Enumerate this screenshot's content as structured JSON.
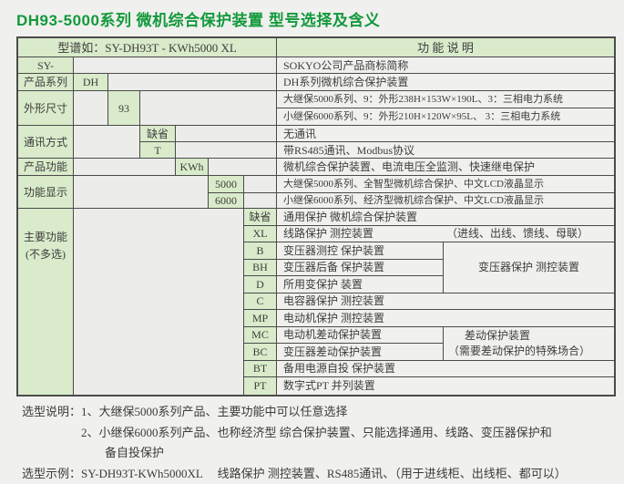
{
  "title": "DH93-5000系列 微机综合保护装置 型号选择及含义",
  "colors": {
    "title_green": "#13993c",
    "cell_green": "#d9ebca",
    "border": "#4b4b4b",
    "page_bg": "#f0f0ee"
  },
  "header": {
    "spec": "型谱如：SY-DH93T - KWh5000 XL",
    "desc": "功 能 说 明"
  },
  "rows": {
    "sy": {
      "label": "SY-",
      "desc": "SOKYO公司产品商标简称"
    },
    "series": {
      "label": "产品系列",
      "code": "DH",
      "desc": "DH系列微机综合保护装置"
    },
    "size": {
      "label": "外形尺寸",
      "code": "93",
      "desc1": "大继保5000系列、9：外形238H×153W×190L、3：三相电力系统",
      "desc2": "小继保6000系列、9：外形210H×120W×95L、 3：三相电力系统"
    },
    "comm": {
      "label": "通讯方式",
      "code1": "缺省",
      "desc1": "无通讯",
      "code2": "T",
      "desc2": "带RS485通讯、Modbus协议"
    },
    "func": {
      "label": "产品功能",
      "code": "KWh",
      "desc": "微机综合保护装置、电流电压全监测、快速继电保护"
    },
    "display": {
      "label": "功能显示",
      "code1": "5000",
      "desc1": "大继保5000系列、全智型微机综合保护、中文LCD液晶显示",
      "code2": "6000",
      "desc2": "小继保6000系列、经济型微机综合保护、中文LCD液晶显示"
    },
    "main": {
      "label1": "主要功能",
      "label2": "(不多选)",
      "items": [
        {
          "code": "缺省",
          "desc": "通用保护 微机综合保护装置"
        },
        {
          "code": "XL",
          "desc": "线路保护 测控装置",
          "note": "（进线、出线、馈线、母联）"
        },
        {
          "code": "B",
          "desc": "变压器测控 保护装置"
        },
        {
          "code": "BH",
          "desc": "变压器后备 保护装置"
        },
        {
          "code": "D",
          "desc": "所用变保护 装置"
        },
        {
          "code": "C",
          "desc": "电容器保护 测控装置"
        },
        {
          "code": "MP",
          "desc": "电动机保护 测控装置"
        },
        {
          "code": "MC",
          "desc": "电动机差动保护装置"
        },
        {
          "code": "BC",
          "desc": "变压器差动保护装置"
        },
        {
          "code": "BT",
          "desc": "备用电源自投 保护装置"
        },
        {
          "code": "PT",
          "desc": "数字式PT 并列装置"
        }
      ],
      "merged_transformer": "变压器保护 测控装置",
      "merged_diff1": "差动保护装置",
      "merged_diff2": "（需要差动保护的特殊场合）"
    }
  },
  "notes": {
    "label1": "选型说明：",
    "line1": "1、大继保5000系列产品、主要功能中可以任意选择",
    "line2": "2、小继保6000系列产品、也称经济型 综合保护装置、只能选择通用、线路、变压器保护和",
    "line3": "备自投保护",
    "label2": "选型示例：",
    "line4": "SY-DH93T-KWh5000XL　 线路保护 测控装置、RS485通讯、（用于进线柜、出线柜、都可以）"
  }
}
